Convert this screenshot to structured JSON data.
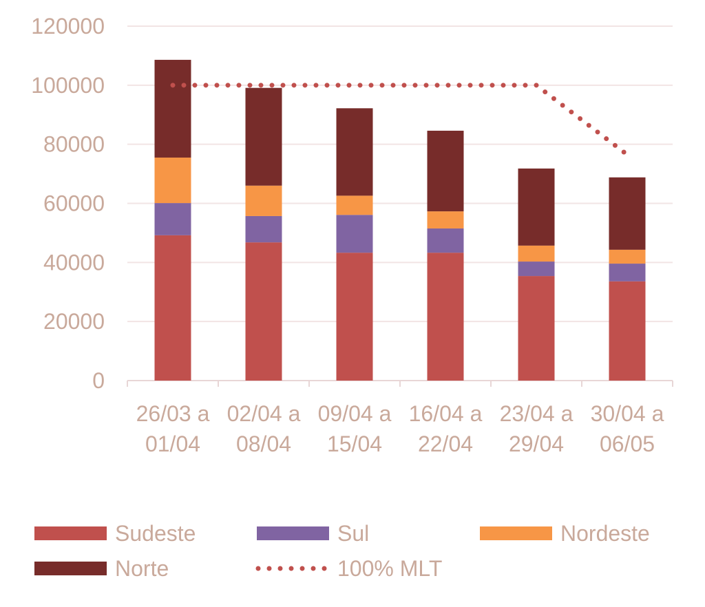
{
  "chart_data": {
    "type": "bar",
    "stacked": true,
    "title": "",
    "xlabel": "",
    "ylabel": "",
    "ylim": [
      0,
      120000
    ],
    "yticks": [
      0,
      20000,
      40000,
      60000,
      80000,
      100000,
      120000
    ],
    "grid": true,
    "legend_position": "bottom",
    "categories": [
      [
        "26/03 a",
        "01/04"
      ],
      [
        "02/04 a",
        "08/04"
      ],
      [
        "09/04 a",
        "15/04"
      ],
      [
        "16/04 a",
        "22/04"
      ],
      [
        "23/04 a",
        "29/04"
      ],
      [
        "30/04 a",
        "06/05"
      ]
    ],
    "series": [
      {
        "name": "Sudeste",
        "color": "#c0504d",
        "values": [
          49200,
          46800,
          43300,
          43300,
          35400,
          33600
        ]
      },
      {
        "name": "Sul",
        "color": "#8064a2",
        "values": [
          10900,
          8900,
          12800,
          8200,
          4900,
          6000
        ]
      },
      {
        "name": "Nordeste",
        "color": "#f79646",
        "values": [
          15400,
          10300,
          6500,
          5800,
          5400,
          4700
        ]
      },
      {
        "name": "Norte",
        "color": "#772c2a",
        "values": [
          33100,
          33100,
          29600,
          27300,
          26100,
          24500
        ]
      }
    ],
    "line_series": {
      "name": "100% MLT",
      "color": "#c0504d",
      "style": "dotted",
      "values": [
        100000,
        100000,
        100000,
        100000,
        100000,
        76500
      ]
    }
  }
}
